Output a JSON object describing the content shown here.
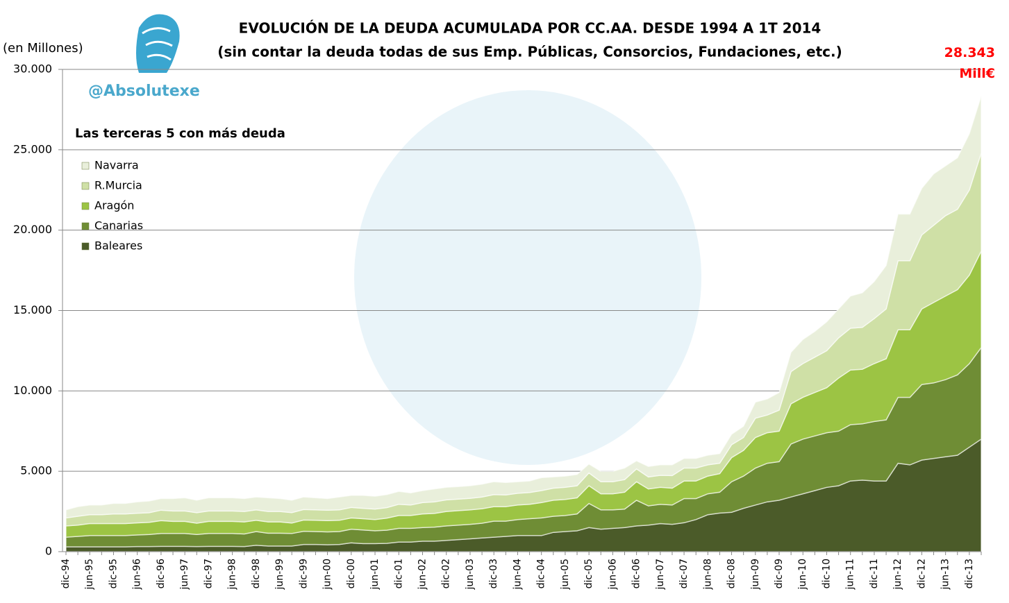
{
  "chart_data": {
    "type": "stacked_area",
    "title": "EVOLUCIÓN DE LA DEUDA ACUMULADA POR CC.AA. DESDE 1994 A 1T 2014",
    "subtitle": "(sin contar la deuda todas de sus Emp. Públicas, Consorcios, Fundaciones, etc.)",
    "y_label": "(en Millones)",
    "watermark": "@Absolutexe",
    "legend_title": "Las terceras 5 con más deuda",
    "legend_position": "upper left",
    "grid": true,
    "end_label": {
      "value": 28343,
      "lines": [
        "28.343",
        "Mill€"
      ]
    },
    "ylim": [
      0,
      30000
    ],
    "yticks": [
      0,
      {
        "value": 5000,
        "label": "5.000"
      },
      {
        "value": 10000,
        "label": "10.000"
      },
      {
        "value": 15000,
        "label": "15.000"
      },
      {
        "value": 20000,
        "label": "20.000"
      },
      {
        "value": 25000,
        "label": "25.000"
      },
      {
        "value": 30000,
        "label": "30.000"
      }
    ],
    "categories": [
      "dic-94",
      null,
      "jun-95",
      null,
      "dic-95",
      null,
      "jun-96",
      null,
      "dic-96",
      null,
      "jun-97",
      null,
      "dic-97",
      null,
      "jun-98",
      null,
      "dic-98",
      null,
      "jun-99",
      null,
      "dic-99",
      null,
      "jun-00",
      null,
      "dic-00",
      null,
      "jun-01",
      null,
      "dic-01",
      null,
      "jun-02",
      null,
      "dic-02",
      null,
      "jun-03",
      null,
      "dic-03",
      null,
      "jun-04",
      null,
      "dic-04",
      null,
      "jun-05",
      null,
      "dic-05",
      null,
      "jun-06",
      null,
      "dic-06",
      null,
      "jun-07",
      null,
      "dic-07",
      null,
      "jun-08",
      null,
      "dic-08",
      null,
      "jun-09",
      null,
      "dic-09",
      null,
      "jun-10",
      null,
      "dic-10",
      null,
      "jun-11",
      null,
      "dic-11",
      null,
      "jun-12",
      null,
      "dic-12",
      null,
      "jun-13",
      null,
      "dic-13",
      null
    ],
    "series": [
      {
        "name": "Baleares",
        "color": "#4b5b29",
        "values": [
          300,
          300,
          300,
          300,
          300,
          300,
          320,
          320,
          330,
          330,
          330,
          320,
          330,
          330,
          330,
          320,
          400,
          350,
          350,
          350,
          450,
          450,
          430,
          450,
          550,
          500,
          500,
          520,
          600,
          600,
          650,
          650,
          700,
          750,
          800,
          850,
          900,
          950,
          1000,
          1000,
          1000,
          1200,
          1250,
          1300,
          1500,
          1400,
          1450,
          1500,
          1600,
          1650,
          1750,
          1700,
          1800,
          2000,
          2300,
          2400,
          2450,
          2700,
          2900,
          3100,
          3200,
          3400,
          3600,
          3800,
          4000,
          4100,
          4400,
          4450,
          4400,
          4400,
          5500,
          5400,
          5700,
          5800,
          5900,
          6000,
          6500,
          7000
        ]
      },
      {
        "name": "Canarias",
        "color": "#6f8d35",
        "values": [
          600,
          650,
          700,
          700,
          700,
          700,
          720,
          750,
          800,
          800,
          800,
          750,
          800,
          800,
          800,
          780,
          850,
          800,
          800,
          780,
          820,
          800,
          800,
          800,
          850,
          850,
          800,
          820,
          850,
          850,
          850,
          880,
          900,
          900,
          900,
          920,
          1000,
          950,
          1000,
          1050,
          1100,
          1000,
          1000,
          1050,
          1500,
          1200,
          1150,
          1150,
          1600,
          1200,
          1200,
          1200,
          1500,
          1300,
          1300,
          1300,
          1900,
          2000,
          2300,
          2400,
          2400,
          3300,
          3400,
          3400,
          3400,
          3400,
          3500,
          3500,
          3700,
          3800,
          4100,
          4200,
          4700,
          4700,
          4800,
          5000,
          5200,
          5700
        ]
      },
      {
        "name": "Aragón",
        "color": "#9cc444",
        "values": [
          700,
          700,
          750,
          750,
          750,
          750,
          750,
          750,
          800,
          750,
          750,
          700,
          750,
          750,
          750,
          750,
          700,
          700,
          700,
          650,
          700,
          700,
          700,
          700,
          700,
          700,
          700,
          750,
          800,
          800,
          850,
          850,
          900,
          900,
          900,
          900,
          900,
          900,
          900,
          900,
          950,
          1000,
          1000,
          1000,
          1100,
          1000,
          1000,
          1050,
          1150,
          1050,
          1050,
          1050,
          1100,
          1100,
          1100,
          1150,
          1500,
          1600,
          1900,
          1900,
          1900,
          2500,
          2600,
          2700,
          2800,
          3300,
          3400,
          3400,
          3600,
          3800,
          4200,
          4200,
          4700,
          5000,
          5200,
          5300,
          5500,
          6000
        ]
      },
      {
        "name": "R.Murcia",
        "color": "#cfe0a6",
        "values": [
          500,
          550,
          550,
          550,
          600,
          600,
          600,
          600,
          650,
          650,
          650,
          650,
          650,
          650,
          650,
          650,
          650,
          650,
          650,
          650,
          650,
          650,
          650,
          650,
          650,
          650,
          650,
          650,
          700,
          650,
          700,
          720,
          720,
          720,
          720,
          730,
          750,
          730,
          730,
          730,
          750,
          750,
          750,
          750,
          800,
          750,
          750,
          780,
          800,
          750,
          750,
          780,
          800,
          800,
          700,
          650,
          800,
          800,
          1200,
          1100,
          1300,
          2000,
          2100,
          2200,
          2300,
          2500,
          2600,
          2600,
          2800,
          3100,
          4300,
          4300,
          4600,
          4800,
          5000,
          5000,
          5300,
          6100
        ]
      },
      {
        "name": "Navarra",
        "color": "#e9efdb",
        "values": [
          500,
          600,
          600,
          600,
          650,
          650,
          710,
          730,
          720,
          770,
          820,
          780,
          820,
          820,
          820,
          800,
          800,
          850,
          800,
          770,
          780,
          750,
          720,
          800,
          750,
          800,
          800,
          810,
          800,
          750,
          750,
          800,
          780,
          780,
          780,
          800,
          800,
          770,
          720,
          720,
          800,
          700,
          700,
          700,
          550,
          650,
          650,
          720,
          500,
          650,
          650,
          670,
          600,
          600,
          600,
          600,
          650,
          700,
          1000,
          1000,
          1100,
          1200,
          1500,
          1600,
          1800,
          1800,
          2000,
          2150,
          2300,
          2700,
          2900,
          2900,
          2900,
          3200,
          3100,
          3200,
          3500,
          3543
        ]
      }
    ]
  }
}
